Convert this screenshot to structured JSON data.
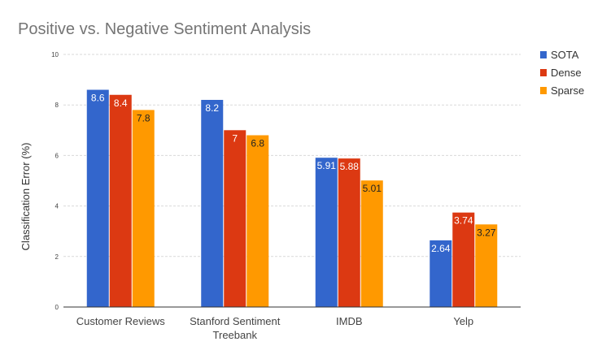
{
  "chart_data": {
    "type": "bar",
    "title": "Positive vs. Negative Sentiment Analysis",
    "xlabel": "",
    "ylabel": "Classification Error (%)",
    "ylim": [
      0,
      10
    ],
    "yticks": [
      "0",
      "2",
      "4",
      "6",
      "8",
      "10"
    ],
    "grid": true,
    "legend_position": "right",
    "categories": [
      [
        "Customer Reviews"
      ],
      [
        "Stanford Sentiment",
        "Treebank"
      ],
      [
        "IMDB"
      ],
      [
        "Yelp"
      ]
    ],
    "series": [
      {
        "name": "SOTA",
        "color": "#3366CC",
        "label_color": "#ffffff",
        "values": [
          8.6,
          8.2,
          5.91,
          2.64
        ],
        "labels": [
          "8.6",
          "8.2",
          "5.91",
          "2.64"
        ]
      },
      {
        "name": "Dense",
        "color": "#DC3912",
        "label_color": "#ffffff",
        "values": [
          8.4,
          7,
          5.88,
          3.74
        ],
        "labels": [
          "8.4",
          "7",
          "5.88",
          "3.74"
        ]
      },
      {
        "name": "Sparse",
        "color": "#FF9900",
        "label_color": "#222222",
        "values": [
          7.8,
          6.8,
          5.01,
          3.27
        ],
        "labels": [
          "7.8",
          "6.8",
          "5.01",
          "3.27"
        ]
      }
    ]
  }
}
